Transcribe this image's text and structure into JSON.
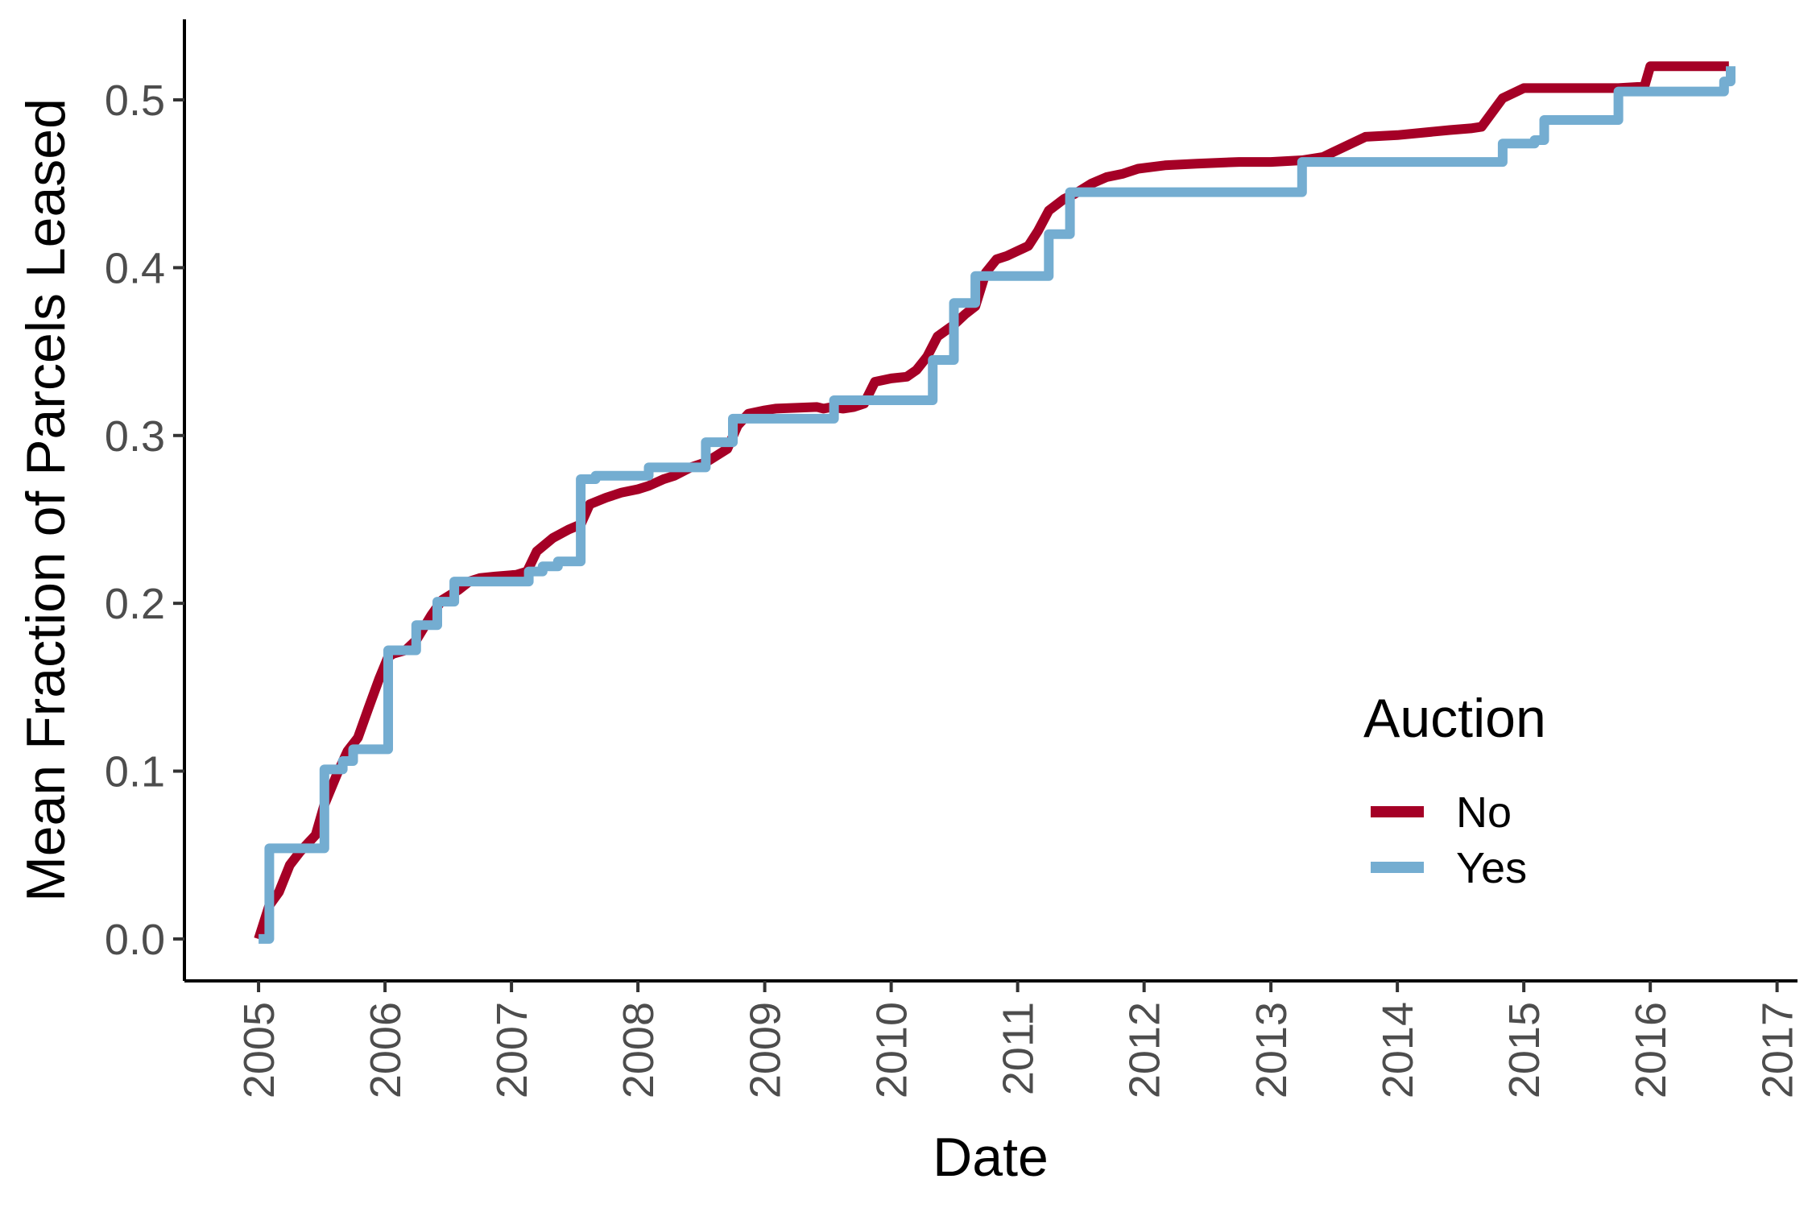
{
  "chart_data": {
    "type": "line",
    "xlabel": "Date",
    "ylabel": "Mean Fraction of Parcels Leased",
    "xlim": [
      "2004-06-01",
      "2017-03-01"
    ],
    "ylim": [
      -0.025,
      0.548
    ],
    "x_ticks": [
      "2005",
      "2006",
      "2007",
      "2008",
      "2009",
      "2010",
      "2011",
      "2012",
      "2013",
      "2014",
      "2015",
      "2016",
      "2017"
    ],
    "y_ticks": [
      "0.0",
      "0.1",
      "0.2",
      "0.3",
      "0.4",
      "0.5"
    ],
    "grid": false,
    "legend": {
      "title": "Auction",
      "position": "right"
    },
    "series": [
      {
        "name": "No",
        "color": "#a50026",
        "step": false,
        "x": [
          "2005-01-01",
          "2005-02-01",
          "2005-03-01",
          "2005-04-01",
          "2005-05-01",
          "2005-06-15",
          "2005-07-10",
          "2005-08-15",
          "2005-09-15",
          "2005-10-15",
          "2005-11-15",
          "2005-12-15",
          "2006-01-10",
          "2006-01-25",
          "2006-03-01",
          "2006-04-01",
          "2006-05-15",
          "2006-06-15",
          "2006-08-01",
          "2006-09-01",
          "2006-10-01",
          "2006-11-15",
          "2007-01-15",
          "2007-02-15",
          "2007-03-15",
          "2007-05-01",
          "2007-06-15",
          "2007-07-20",
          "2007-08-15",
          "2007-10-01",
          "2007-11-15",
          "2008-01-01",
          "2008-02-01",
          "2008-03-15",
          "2008-04-15",
          "2008-06-01",
          "2008-07-15",
          "2008-08-15",
          "2008-09-15",
          "2008-10-15",
          "2008-11-15",
          "2009-01-01",
          "2009-02-01",
          "2009-06-01",
          "2009-06-20",
          "2009-07-15",
          "2009-08-15",
          "2009-09-15",
          "2009-10-15",
          "2009-11-15",
          "2010-01-01",
          "2010-02-15",
          "2010-03-15",
          "2010-04-15",
          "2010-05-15",
          "2010-07-01",
          "2010-08-01",
          "2010-09-01",
          "2010-10-01",
          "2010-11-01",
          "2010-12-01",
          "2011-01-01",
          "2011-02-01",
          "2011-03-01",
          "2011-04-01",
          "2011-05-15",
          "2011-06-15",
          "2011-08-01",
          "2011-09-15",
          "2011-11-01",
          "2011-12-15",
          "2012-03-01",
          "2012-06-01",
          "2012-10-01",
          "2013-01-01",
          "2013-04-01",
          "2013-06-01",
          "2013-07-01",
          "2013-10-01",
          "2014-01-01",
          "2014-06-01",
          "2014-08-01",
          "2014-09-01",
          "2014-11-01",
          "2015-01-01",
          "2015-06-01",
          "2015-10-01",
          "2015-12-15",
          "2016-01-01",
          "2016-08-15"
        ],
        "values": [
          0.0,
          0.02,
          0.028,
          0.044,
          0.052,
          0.062,
          0.08,
          0.098,
          0.112,
          0.12,
          0.138,
          0.155,
          0.168,
          0.17,
          0.172,
          0.178,
          0.193,
          0.202,
          0.208,
          0.213,
          0.215,
          0.216,
          0.217,
          0.219,
          0.231,
          0.239,
          0.244,
          0.247,
          0.259,
          0.263,
          0.266,
          0.268,
          0.27,
          0.274,
          0.276,
          0.281,
          0.284,
          0.288,
          0.292,
          0.306,
          0.313,
          0.315,
          0.316,
          0.317,
          0.316,
          0.317,
          0.316,
          0.317,
          0.319,
          0.332,
          0.334,
          0.335,
          0.339,
          0.347,
          0.359,
          0.366,
          0.372,
          0.377,
          0.397,
          0.405,
          0.407,
          0.41,
          0.413,
          0.422,
          0.434,
          0.441,
          0.444,
          0.45,
          0.454,
          0.456,
          0.459,
          0.461,
          0.462,
          0.463,
          0.463,
          0.464,
          0.466,
          0.469,
          0.478,
          0.479,
          0.482,
          0.483,
          0.484,
          0.501,
          0.507,
          0.507,
          0.507,
          0.508,
          0.52,
          0.52
        ]
      },
      {
        "name": "Yes",
        "color": "#74add1",
        "step": true,
        "x": [
          "2005-01-01",
          "2005-02-01",
          "2005-07-10",
          "2005-09-01",
          "2005-10-01",
          "2006-01-10",
          "2006-04-01",
          "2006-06-01",
          "2006-07-20",
          "2006-08-20",
          "2007-02-20",
          "2007-04-01",
          "2007-05-15",
          "2007-07-20",
          "2007-09-01",
          "2008-02-01",
          "2008-07-15",
          "2008-10-01",
          "2009-07-20",
          "2010-03-01",
          "2010-05-01",
          "2010-07-01",
          "2010-09-01",
          "2011-04-01",
          "2011-06-01",
          "2013-04-01",
          "2014-10-01",
          "2014-11-01",
          "2015-02-01",
          "2015-03-01",
          "2015-07-15",
          "2015-10-01",
          "2016-06-15",
          "2016-08-01",
          "2016-08-20"
        ],
        "values": [
          0.0,
          0.054,
          0.101,
          0.106,
          0.113,
          0.172,
          0.187,
          0.201,
          0.213,
          0.213,
          0.219,
          0.222,
          0.225,
          0.274,
          0.276,
          0.281,
          0.296,
          0.31,
          0.321,
          0.321,
          0.345,
          0.379,
          0.395,
          0.42,
          0.445,
          0.463,
          0.463,
          0.474,
          0.476,
          0.488,
          0.488,
          0.505,
          0.505,
          0.511,
          0.52
        ]
      }
    ]
  }
}
